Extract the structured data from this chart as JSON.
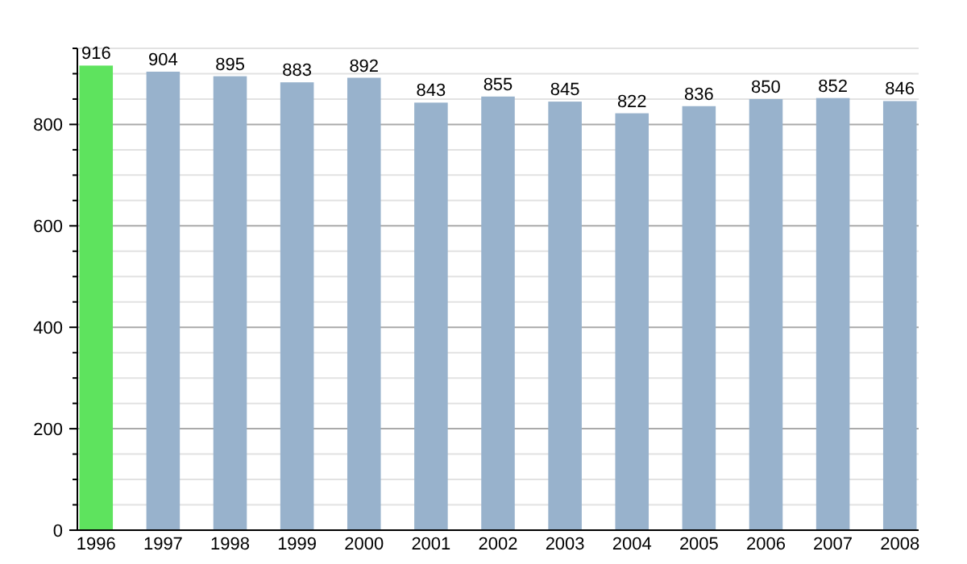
{
  "chart_data": {
    "type": "bar",
    "categories": [
      "1996",
      "1997",
      "1998",
      "1999",
      "2000",
      "2001",
      "2002",
      "2003",
      "2004",
      "2005",
      "2006",
      "2007",
      "2008"
    ],
    "values": [
      916,
      904,
      895,
      883,
      892,
      843,
      855,
      845,
      822,
      836,
      850,
      852,
      846
    ],
    "colors": [
      "#5ee35e",
      "#98b2cc",
      "#98b2cc",
      "#98b2cc",
      "#98b2cc",
      "#98b2cc",
      "#98b2cc",
      "#98b2cc",
      "#98b2cc",
      "#98b2cc",
      "#98b2cc",
      "#98b2cc",
      "#98b2cc"
    ],
    "ylim": [
      0,
      950
    ],
    "yticks": [
      0,
      {
        "value": 50,
        "label": null
      },
      {
        "value": 100,
        "label": null
      },
      {
        "value": 150,
        "label": null
      },
      200,
      {
        "value": 250,
        "label": null
      },
      {
        "value": 300,
        "label": null
      },
      {
        "value": 350,
        "label": null
      },
      400,
      {
        "value": 450,
        "label": null
      },
      {
        "value": 500,
        "label": null
      },
      {
        "value": 550,
        "label": null
      },
      600,
      {
        "value": 650,
        "label": null
      },
      {
        "value": 700,
        "label": null
      },
      {
        "value": 750,
        "label": null
      },
      800,
      {
        "value": 850,
        "label": null
      },
      {
        "value": 900,
        "label": null
      },
      {
        "value": 950,
        "label": null
      }
    ],
    "grid": true,
    "data_labels": true
  }
}
